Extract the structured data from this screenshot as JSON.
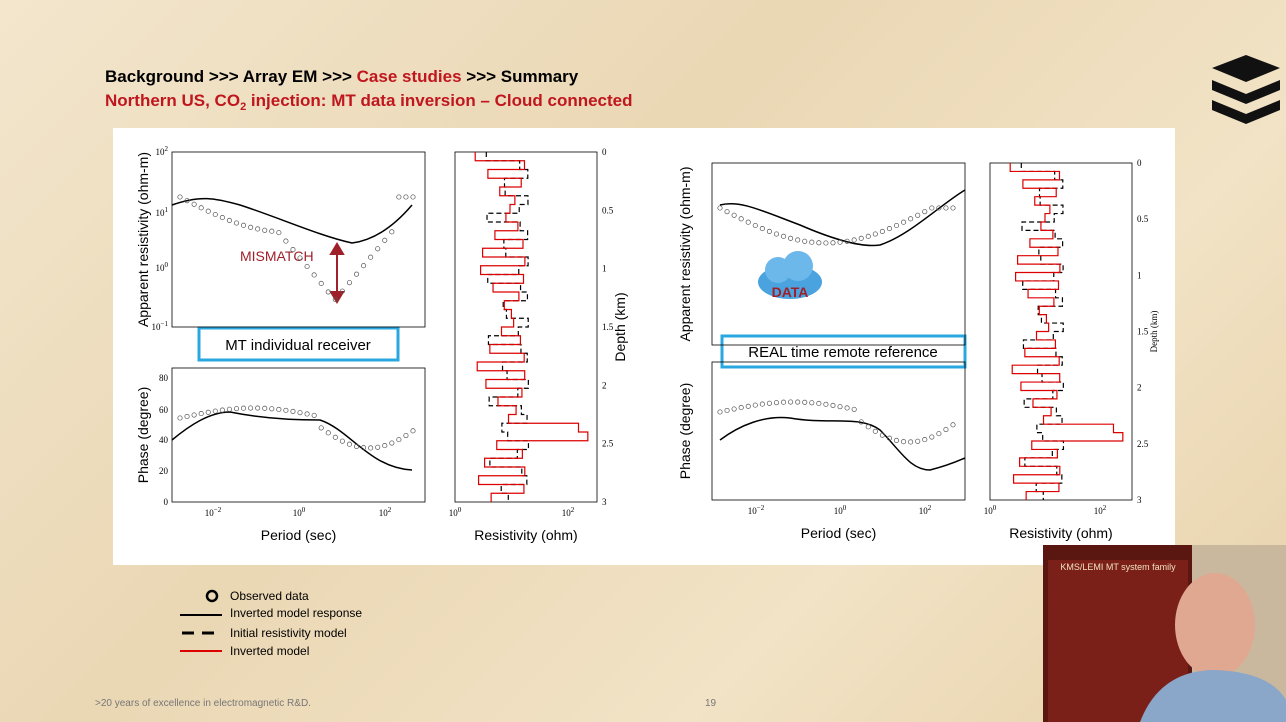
{
  "header": {
    "breadcrumb": [
      "Background >>> Array EM >>> ",
      "Case studies",
      " >>> Summary"
    ],
    "subtitle": [
      "Northern US, CO",
      "2",
      " injection: MT data inversion – Cloud connected"
    ]
  },
  "left_panel": {
    "rho_label": "Apparent resistivity (ohm-m)",
    "rho_ticks": [
      {
        "base": "10",
        "exp": "2"
      },
      {
        "base": "10",
        "exp": "1"
      },
      {
        "base": "10",
        "exp": "0"
      },
      {
        "base": "10",
        "exp": "−1"
      }
    ],
    "phase_label": "Phase (degree)",
    "phase_ticks": [
      "80",
      "60",
      "40",
      "20",
      "0"
    ],
    "period_label": "Period (sec)",
    "period_ticks": [
      {
        "base": "10",
        "exp": "−2"
      },
      {
        "base": "10",
        "exp": "0"
      },
      {
        "base": "10",
        "exp": "2"
      }
    ],
    "depth_label": "Depth (km)",
    "depth_ticks": [
      "0",
      "0.5",
      "1",
      "1.5",
      "2",
      "2.5",
      "3"
    ],
    "resistivity_label": "Resistivity (ohm)",
    "resistivity_ticks": [
      {
        "base": "10",
        "exp": "0"
      },
      {
        "base": "10",
        "exp": "2"
      }
    ],
    "annotation": "MISMATCH",
    "box_label": "MT individual receiver"
  },
  "right_panel": {
    "rho_label": "Apparent resistivity (ohm-m)",
    "phase_label": "Phase (degree)",
    "period_label": "Period (sec)",
    "period_ticks": [
      {
        "base": "10",
        "exp": "−2"
      },
      {
        "base": "10",
        "exp": "0"
      },
      {
        "base": "10",
        "exp": "2"
      }
    ],
    "depth_label": "Depth (km)",
    "depth_ticks": [
      "0",
      "0.5",
      "1",
      "1.5",
      "2",
      "2.5",
      "3"
    ],
    "resistivity_label": "Resistivity (ohm)",
    "resistivity_ticks": [
      {
        "base": "10",
        "exp": "0"
      },
      {
        "base": "10",
        "exp": "2"
      }
    ],
    "box_label": "REAL time remote reference",
    "cloud_label": "DATA"
  },
  "legend": [
    "Observed data",
    "Inverted model response",
    "Initial resistivity model",
    "Inverted model"
  ],
  "footer": {
    "tagline": ">20 years of excellence in electromagnetic R&D.",
    "page": "19"
  },
  "video": {
    "poster_title": "KMS/LEMI MT system family"
  }
}
